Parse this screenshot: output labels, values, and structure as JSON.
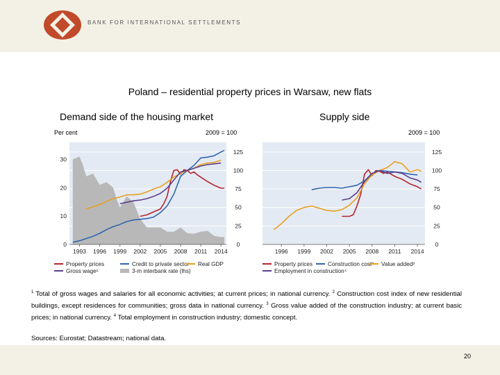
{
  "header": {
    "bank_name": "BANK FOR INTERNATIONAL SETTLEMENTS"
  },
  "title": "Poland – residential property prices in Warsaw, new flats",
  "colors": {
    "property": "#b4232d",
    "credit": "#2f65b0",
    "gdp": "#e8a020",
    "wage": "#5a3f8c",
    "rate": "#b8b8b8",
    "construction": "#2f65b0",
    "value_added": "#e8a020",
    "employment": "#5a3f8c"
  },
  "chart_data": [
    {
      "type": "line",
      "title": "Demand side of the housing market",
      "left_unit": "Per cent",
      "right_unit": "2009 = 100",
      "left_axis": {
        "ticks": [
          "0",
          "10",
          "20",
          "30"
        ],
        "range": [
          0,
          36
        ]
      },
      "right_axis": {
        "ticks": [
          "0",
          "25",
          "50",
          "75",
          "100",
          "125"
        ],
        "range": [
          0,
          138
        ]
      },
      "x_ticks": [
        "1993",
        "1996",
        "1999",
        "2002",
        "2005",
        "2008",
        "2011",
        "2014"
      ],
      "xlim": [
        1991.5,
        2014.8
      ],
      "legend": [
        "Property prices",
        "Credit to private sector",
        "Real GDP",
        "Gross wage¹",
        "3-m interbank rate (lhs)"
      ],
      "series": [
        {
          "name": "Property prices",
          "color": "#b4232d",
          "points": [
            [
              2002,
              38
            ],
            [
              2003,
              40
            ],
            [
              2004,
              44
            ],
            [
              2005,
              48
            ],
            [
              2005.5,
              55
            ],
            [
              2006,
              65
            ],
            [
              2006.5,
              85
            ],
            [
              2007,
              100
            ],
            [
              2007.5,
              101
            ],
            [
              2008,
              95
            ],
            [
              2008.5,
              101
            ],
            [
              2009,
              100
            ],
            [
              2009.5,
              96
            ],
            [
              2010,
              98
            ],
            [
              2010.5,
              94
            ],
            [
              2011,
              91
            ],
            [
              2012,
              85
            ],
            [
              2013,
              80
            ],
            [
              2014,
              76
            ],
            [
              2014.5,
              76
            ]
          ]
        },
        {
          "name": "Credit to private sector",
          "color": "#2f65b0",
          "points": [
            [
              1992,
              3
            ],
            [
              1993,
              5
            ],
            [
              1994,
              8
            ],
            [
              1995,
              11
            ],
            [
              1996,
              15
            ],
            [
              1997,
              20
            ],
            [
              1998,
              24
            ],
            [
              1999,
              27
            ],
            [
              2000,
              31
            ],
            [
              2001,
              33
            ],
            [
              2002,
              34
            ],
            [
              2003,
              35
            ],
            [
              2004,
              37
            ],
            [
              2005,
              43
            ],
            [
              2006,
              52
            ],
            [
              2007,
              68
            ],
            [
              2007.5,
              80
            ],
            [
              2008,
              92
            ],
            [
              2009,
              100
            ],
            [
              2010,
              107
            ],
            [
              2011,
              117
            ],
            [
              2012,
              118
            ],
            [
              2013,
              120
            ],
            [
              2014,
              125
            ],
            [
              2014.5,
              127
            ]
          ]
        },
        {
          "name": "Real GDP",
          "color": "#e8a020",
          "points": [
            [
              1994,
              48
            ],
            [
              1995,
              51
            ],
            [
              1996,
              54
            ],
            [
              1997,
              58
            ],
            [
              1998,
              62
            ],
            [
              1999,
              64
            ],
            [
              2000,
              67
            ],
            [
              2001,
              67
            ],
            [
              2002,
              68
            ],
            [
              2003,
              71
            ],
            [
              2004,
              75
            ],
            [
              2005,
              78
            ],
            [
              2006,
              84
            ],
            [
              2007,
              91
            ],
            [
              2008,
              96
            ],
            [
              2009,
              100
            ],
            [
              2010,
              103
            ],
            [
              2011,
              108
            ],
            [
              2012,
              110
            ],
            [
              2013,
              111
            ],
            [
              2014,
              114
            ]
          ]
        },
        {
          "name": "Gross wage¹",
          "color": "#5a3f8c",
          "points": [
            [
              1999,
              55
            ],
            [
              2000,
              57
            ],
            [
              2001,
              59
            ],
            [
              2002,
              60
            ],
            [
              2003,
              62
            ],
            [
              2004,
              65
            ],
            [
              2005,
              69
            ],
            [
              2006,
              76
            ],
            [
              2007,
              87
            ],
            [
              2008,
              98
            ],
            [
              2009,
              100
            ],
            [
              2010,
              103
            ],
            [
              2011,
              106
            ],
            [
              2012,
              108
            ],
            [
              2013,
              109
            ],
            [
              2014,
              110
            ]
          ]
        }
      ],
      "area_series": {
        "name": "3-m interbank rate (lhs)",
        "color": "#b8b8b8",
        "points": [
          [
            1992,
            30
          ],
          [
            1993,
            31
          ],
          [
            1993.5,
            28
          ],
          [
            1994,
            24
          ],
          [
            1995,
            25
          ],
          [
            1996,
            21
          ],
          [
            1997,
            22
          ],
          [
            1998,
            20
          ],
          [
            1998.5,
            16
          ],
          [
            1999,
            13
          ],
          [
            2000,
            17
          ],
          [
            2001,
            15
          ],
          [
            2002,
            9
          ],
          [
            2003,
            6
          ],
          [
            2004,
            6
          ],
          [
            2005,
            6
          ],
          [
            2006,
            4.5
          ],
          [
            2007,
            4.5
          ],
          [
            2008,
            6
          ],
          [
            2009,
            4
          ],
          [
            2010,
            3.8
          ],
          [
            2011,
            4.5
          ],
          [
            2012,
            4.8
          ],
          [
            2013,
            3
          ],
          [
            2014,
            2.6
          ],
          [
            2014.5,
            2.6
          ]
        ]
      }
    },
    {
      "type": "line",
      "title": "Supply side",
      "right_unit": "2009 = 100",
      "right_axis": {
        "ticks": [
          "0",
          "25",
          "50",
          "75",
          "100",
          "125"
        ],
        "range": [
          0,
          138
        ]
      },
      "x_ticks": [
        "1996",
        "1999",
        "2002",
        "2005",
        "2008",
        "2011",
        "2014"
      ],
      "xlim": [
        1993.5,
        2015
      ],
      "legend": [
        "Property prices",
        "Construction cost²",
        "Value added³",
        "Employment in construction⁴"
      ],
      "series": [
        {
          "name": "Property prices",
          "color": "#b4232d",
          "points": [
            [
              2004,
              38
            ],
            [
              2005,
              38
            ],
            [
              2005.5,
              40
            ],
            [
              2006,
              52
            ],
            [
              2006.5,
              68
            ],
            [
              2007,
              95
            ],
            [
              2007.5,
              101
            ],
            [
              2008,
              93
            ],
            [
              2008.5,
              100
            ],
            [
              2009,
              99
            ],
            [
              2009.5,
              96
            ],
            [
              2010,
              98
            ],
            [
              2011,
              92
            ],
            [
              2012,
              88
            ],
            [
              2013,
              82
            ],
            [
              2014,
              78
            ],
            [
              2014.5,
              75
            ]
          ]
        },
        {
          "name": "Construction cost²",
          "color": "#2f65b0",
          "points": [
            [
              2000,
              74
            ],
            [
              2001,
              76
            ],
            [
              2002,
              77
            ],
            [
              2003,
              77
            ],
            [
              2004,
              76
            ],
            [
              2005,
              78
            ],
            [
              2006,
              80
            ],
            [
              2007,
              86
            ],
            [
              2008,
              96
            ],
            [
              2009,
              100
            ],
            [
              2010,
              99
            ],
            [
              2011,
              98
            ],
            [
              2012,
              97
            ],
            [
              2013,
              95
            ],
            [
              2014,
              94
            ]
          ]
        },
        {
          "name": "Value added³",
          "color": "#e8a020",
          "points": [
            [
              1995,
              20
            ],
            [
              1996,
              28
            ],
            [
              1997,
              38
            ],
            [
              1998,
              46
            ],
            [
              1999,
              50
            ],
            [
              2000,
              52
            ],
            [
              2001,
              49
            ],
            [
              2002,
              46
            ],
            [
              2003,
              45
            ],
            [
              2004,
              47
            ],
            [
              2005,
              53
            ],
            [
              2006,
              63
            ],
            [
              2007,
              82
            ],
            [
              2008,
              94
            ],
            [
              2009,
              100
            ],
            [
              2010,
              104
            ],
            [
              2011,
              112
            ],
            [
              2012,
              109
            ],
            [
              2013,
              98
            ],
            [
              2014,
              101
            ],
            [
              2014.5,
              99
            ]
          ]
        },
        {
          "name": "Employment in construction⁴",
          "color": "#5a3f8c",
          "points": [
            [
              2004,
              60
            ],
            [
              2005,
              62
            ],
            [
              2006,
              70
            ],
            [
              2007,
              85
            ],
            [
              2008,
              96
            ],
            [
              2009,
              100
            ],
            [
              2010,
              96
            ],
            [
              2011,
              98
            ],
            [
              2012,
              96
            ],
            [
              2013,
              90
            ],
            [
              2014,
              87
            ],
            [
              2014.5,
              84
            ]
          ]
        }
      ]
    }
  ],
  "subtitles": {
    "left": "Demand side of the housing market",
    "right": "Supply side"
  },
  "units": {
    "left_lhs": "Per cent",
    "left_rhs": "2009 = 100",
    "right_rhs": "2009 = 100"
  },
  "footnotes": {
    "n1": "1",
    "t1": "Total of gross wages and salaries for all economic activities; at current prices; in national currency.",
    "n2": "2",
    "t2": "Construction cost index of new residential buildings, except residences for communities; gross data in national currency.",
    "n3": "3",
    "t3": "Gross value added of the construction industry; at current basic prices; in national currency.",
    "n4": "4",
    "t4": "Total employment in construction industry; domestic concept."
  },
  "sources": "Sources: Eurostat; Datastream; national data.",
  "page_number": "20"
}
